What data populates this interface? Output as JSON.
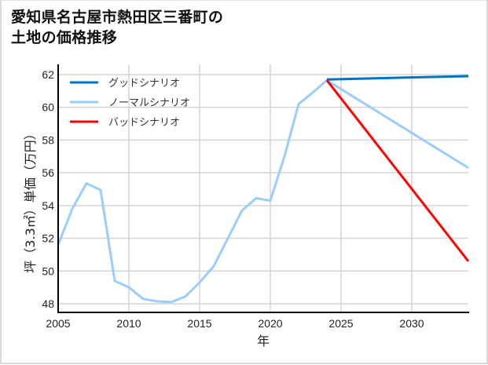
{
  "chart_data": {
    "type": "line",
    "title": [
      "愛知県名古屋市熱田区三番町の",
      "土地の価格推移"
    ],
    "xlabel": "年",
    "ylabel": "坪（3.3㎡）単価（万円）",
    "xlim": [
      2005,
      2034
    ],
    "ylim": [
      47.5,
      62.6
    ],
    "xticks": [
      2005,
      2010,
      2015,
      2020,
      2025,
      2030
    ],
    "yticks": [
      48,
      50,
      52,
      54,
      56,
      58,
      60,
      62
    ],
    "grid": true,
    "legend_position": "upper left",
    "series": [
      {
        "name": "グッドシナリオ",
        "color": "#0070c0",
        "x": [
          2024,
          2034
        ],
        "values": [
          61.7,
          61.9
        ]
      },
      {
        "name": "ノーマルシナリオ",
        "color": "#99ccff",
        "x": [
          2005,
          2006,
          2007,
          2008,
          2009,
          2010,
          2011,
          2012,
          2013,
          2014,
          2015,
          2016,
          2017,
          2018,
          2019,
          2020,
          2021,
          2022,
          2023,
          2024,
          2034
        ],
        "values": [
          51.6,
          53.8,
          55.35,
          54.95,
          49.4,
          49.0,
          48.3,
          48.15,
          48.1,
          48.45,
          49.3,
          50.3,
          52.0,
          53.7,
          54.45,
          54.3,
          57.0,
          60.2,
          60.9,
          61.65,
          56.3
        ]
      },
      {
        "name": "バッドシナリオ",
        "color": "#ff0000",
        "x": [
          2024,
          2034
        ],
        "values": [
          61.65,
          50.6
        ]
      }
    ]
  }
}
